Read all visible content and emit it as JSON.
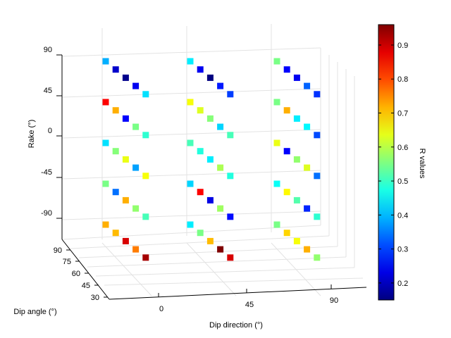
{
  "chart_data": {
    "type": "scatter",
    "projection": "3d",
    "xlabel": "Dip direction (°)",
    "ylabel": "Dip angle (°)",
    "zlabel": "Rake (°)",
    "colorbar_label": "R values",
    "x_ticks": [
      "0",
      "45",
      "90"
    ],
    "y_ticks": [
      "30",
      "45",
      "60",
      "75",
      "90"
    ],
    "z_ticks": [
      "90",
      "45",
      "0",
      "-45",
      "-90"
    ],
    "colorbar_ticks": [
      "0.9",
      "0.8",
      "0.7",
      "0.6",
      "0.5",
      "0.4",
      "0.3",
      "0.2"
    ],
    "colormap": "jet",
    "clim": [
      0.15,
      0.96
    ],
    "grid": true,
    "dip_angles": [
      90,
      75,
      60,
      45,
      30
    ],
    "dip_directions": [
      0,
      45,
      90
    ],
    "rakes": [
      90,
      45,
      0,
      -45,
      -90
    ],
    "points": [
      {
        "dir": 0,
        "rake": 90,
        "r": [
          0.39,
          0.21,
          0.16,
          0.24,
          0.43
        ]
      },
      {
        "dir": 0,
        "rake": 45,
        "r": [
          0.86,
          0.72,
          0.25,
          0.55,
          0.49
        ]
      },
      {
        "dir": 0,
        "rake": 0,
        "r": [
          0.43,
          0.56,
          0.64,
          0.38,
          0.65
        ]
      },
      {
        "dir": 0,
        "rake": -45,
        "r": [
          0.55,
          0.34,
          0.72,
          0.57,
          0.51
        ]
      },
      {
        "dir": 0,
        "rake": -90,
        "r": [
          0.72,
          0.71,
          0.89,
          0.76,
          0.93
        ]
      },
      {
        "dir": 45,
        "rake": 90,
        "r": [
          0.44,
          0.24,
          0.15,
          0.27,
          0.3
        ]
      },
      {
        "dir": 45,
        "rake": 45,
        "r": [
          0.65,
          0.63,
          0.56,
          0.42,
          0.51
        ]
      },
      {
        "dir": 45,
        "rake": 0,
        "r": [
          0.51,
          0.48,
          0.44,
          0.59,
          0.48
        ]
      },
      {
        "dir": 45,
        "rake": -45,
        "r": [
          0.42,
          0.86,
          0.23,
          0.58,
          0.26
        ]
      },
      {
        "dir": 45,
        "rake": -90,
        "r": [
          0.44,
          0.55,
          0.71,
          0.96,
          0.89
        ]
      },
      {
        "dir": 90,
        "rake": 90,
        "r": [
          0.55,
          0.25,
          0.24,
          0.33,
          0.29
        ]
      },
      {
        "dir": 90,
        "rake": 45,
        "r": [
          0.55,
          0.72,
          0.44,
          0.45,
          0.31
        ]
      },
      {
        "dir": 90,
        "rake": 0,
        "r": [
          0.64,
          0.25,
          0.57,
          0.63,
          0.34
        ]
      },
      {
        "dir": 90,
        "rake": -45,
        "r": [
          0.46,
          0.66,
          0.52,
          0.28,
          0.49
        ]
      },
      {
        "dir": 90,
        "rake": -90,
        "r": [
          0.55,
          0.69,
          0.65,
          0.72,
          0.57
        ]
      }
    ]
  }
}
